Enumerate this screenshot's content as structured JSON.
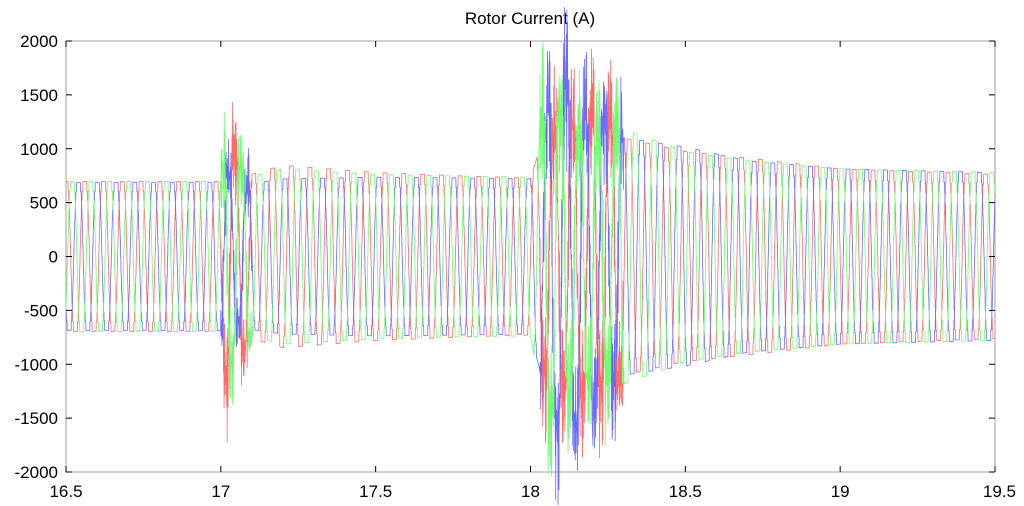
{
  "chart_data": {
    "type": "line",
    "title": "Rotor Current (A)",
    "xlabel": "",
    "ylabel": "",
    "xlim": [
      16.5,
      19.5
    ],
    "ylim": [
      -2000,
      2000
    ],
    "x_ticks": [
      "16.5",
      "17",
      "17.5",
      "18",
      "18.5",
      "19",
      "19.5"
    ],
    "y_ticks": [
      "2000",
      "1500",
      "1000",
      "500",
      "0",
      "-500",
      "-1000",
      "-1500",
      "-2000"
    ],
    "grid": false,
    "legend": "none",
    "signal": {
      "frequency_hz": 16.5,
      "phase_offset_deg": 120,
      "fault_windows": [
        [
          17.0,
          17.1
        ],
        [
          18.03,
          18.3
        ]
      ]
    },
    "series": [
      {
        "color": "#ff6b6b",
        "phase_deg": 0,
        "amplitude_envelope": {
          "x": [
            16.5,
            17.0,
            17.02,
            17.05,
            17.1,
            17.2,
            17.5,
            17.8,
            18.0,
            18.05,
            18.1,
            18.2,
            18.3,
            18.5,
            18.7,
            19.0,
            19.5
          ],
          "y": [
            820,
            820,
            1450,
            1150,
            900,
            1000,
            920,
            880,
            860,
            1400,
            1400,
            1600,
            1300,
            1150,
            1080,
            960,
            900
          ]
        }
      },
      {
        "color": "#6b6bff",
        "phase_deg": 120,
        "amplitude_envelope": {
          "x": [
            16.5,
            17.0,
            17.02,
            17.05,
            17.1,
            17.2,
            17.5,
            17.8,
            18.0,
            18.05,
            18.1,
            18.2,
            18.3,
            18.5,
            18.7,
            19.0,
            19.5
          ],
          "y": [
            810,
            810,
            950,
            700,
            800,
            850,
            870,
            860,
            850,
            1500,
            2000,
            1550,
            1300,
            1200,
            1050,
            960,
            920
          ]
        }
      },
      {
        "color": "#6bff6b",
        "phase_deg": 240,
        "amplitude_envelope": {
          "x": [
            16.5,
            17.0,
            17.02,
            17.05,
            17.1,
            17.2,
            17.5,
            17.8,
            18.0,
            18.05,
            18.1,
            18.2,
            18.3,
            18.5,
            18.7,
            19.0,
            19.5
          ],
          "y": [
            820,
            820,
            1230,
            1000,
            880,
            960,
            900,
            880,
            870,
            1800,
            1500,
            1350,
            1400,
            1150,
            1050,
            960,
            920
          ]
        }
      }
    ]
  }
}
